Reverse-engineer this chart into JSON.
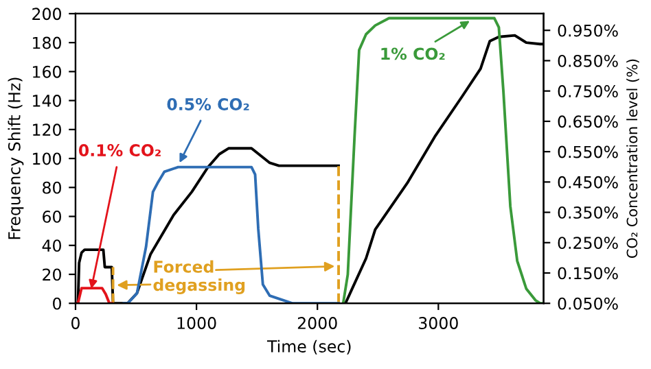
{
  "chart_data": {
    "type": "line",
    "xlabel": "Time (sec)",
    "ylabel": "Frequency Shift (Hz)",
    "y2label": "CO₂ Concentration level (%)",
    "xlim": [
      0,
      3870
    ],
    "xticks": [
      0,
      1000,
      2000,
      3000
    ],
    "ylim": [
      0,
      200
    ],
    "yticks": [
      0,
      20,
      40,
      60,
      80,
      100,
      120,
      140,
      160,
      180,
      200
    ],
    "y2lim": [
      0.05,
      1.005
    ],
    "y2ticks": [
      {
        "value": 0.05,
        "label": "0.050%"
      },
      {
        "value": 0.15,
        "label": "0.150%"
      },
      {
        "value": 0.25,
        "label": "0.250%"
      },
      {
        "value": 0.35,
        "label": "0.350%"
      },
      {
        "value": 0.45,
        "label": "0.450%"
      },
      {
        "value": 0.55,
        "label": "0.550%"
      },
      {
        "value": 0.65,
        "label": "0.650%"
      },
      {
        "value": 0.75,
        "label": "0.750%"
      },
      {
        "value": 0.85,
        "label": "0.850%"
      },
      {
        "value": 0.95,
        "label": "0.950%"
      }
    ],
    "grid": false,
    "legend": false,
    "series": [
      {
        "color": "#000000",
        "x": [
          0,
          20,
          30,
          50,
          75,
          230,
          242,
          269,
          300,
          310,
          430,
          508,
          621,
          811,
          962,
          1095,
          1189,
          1265,
          1455,
          1606,
          1682,
          2175,
          2200,
          2232,
          2402,
          2478,
          2743,
          2970,
          3198,
          3349,
          3425,
          3500,
          3632,
          3727,
          3841,
          3868
        ],
        "values": [
          0,
          0,
          28,
          35,
          37,
          37,
          25,
          25,
          25,
          0,
          0,
          7,
          34,
          61,
          77,
          94,
          103,
          107,
          107,
          97,
          95,
          95,
          null,
          0,
          31,
          51,
          83,
          115,
          143,
          162,
          181,
          184,
          185,
          180,
          179,
          179
        ]
      },
      {
        "color": "#e3131b",
        "axis": "y2",
        "x": [
          0,
          20,
          50,
          220,
          250,
          280,
          300
        ],
        "values": [
          0.05,
          0.05,
          0.1,
          0.1,
          0.08,
          0.05,
          0.05
        ]
      },
      {
        "color": "#2e6db4",
        "axis": "y2",
        "x": [
          400,
          432,
          508,
          583,
          640,
          678,
          735,
          848,
          1455,
          1485,
          1511,
          1549,
          1606,
          1720,
          1795,
          2175
        ],
        "values": [
          0.05,
          0.05,
          0.083,
          0.236,
          0.417,
          0.446,
          0.484,
          0.499,
          0.499,
          0.475,
          0.295,
          0.112,
          0.075,
          0.06,
          0.05,
          0.05
        ]
      },
      {
        "color": "#3a9a3a",
        "axis": "y2",
        "x": [
          2213,
          2251,
          2307,
          2345,
          2402,
          2478,
          2592,
          3463,
          3500,
          3538,
          3595,
          3652,
          3727,
          3803,
          3841,
          3868
        ],
        "values": [
          0.05,
          0.145,
          0.6,
          0.885,
          0.937,
          0.966,
          0.99,
          0.99,
          0.96,
          0.747,
          0.37,
          0.19,
          0.098,
          0.06,
          0.05,
          0.05
        ]
      },
      {
        "color": "#e0a020",
        "line_style": "dashed",
        "x": [
          310,
          310
        ],
        "values": [
          0,
          25
        ]
      },
      {
        "color": "#e0a020",
        "line_style": "dashed",
        "x": [
          2175,
          2175
        ],
        "values": [
          0,
          95
        ]
      }
    ],
    "annotations": [
      {
        "text": "0.1% CO₂",
        "x": 130,
        "y": 10
      },
      {
        "text": "0.5% CO₂",
        "x": 860,
        "y": 97
      },
      {
        "text": "1% CO₂",
        "x": 3260,
        "y": 195
      },
      "Forced\ndegassing"
    ]
  }
}
